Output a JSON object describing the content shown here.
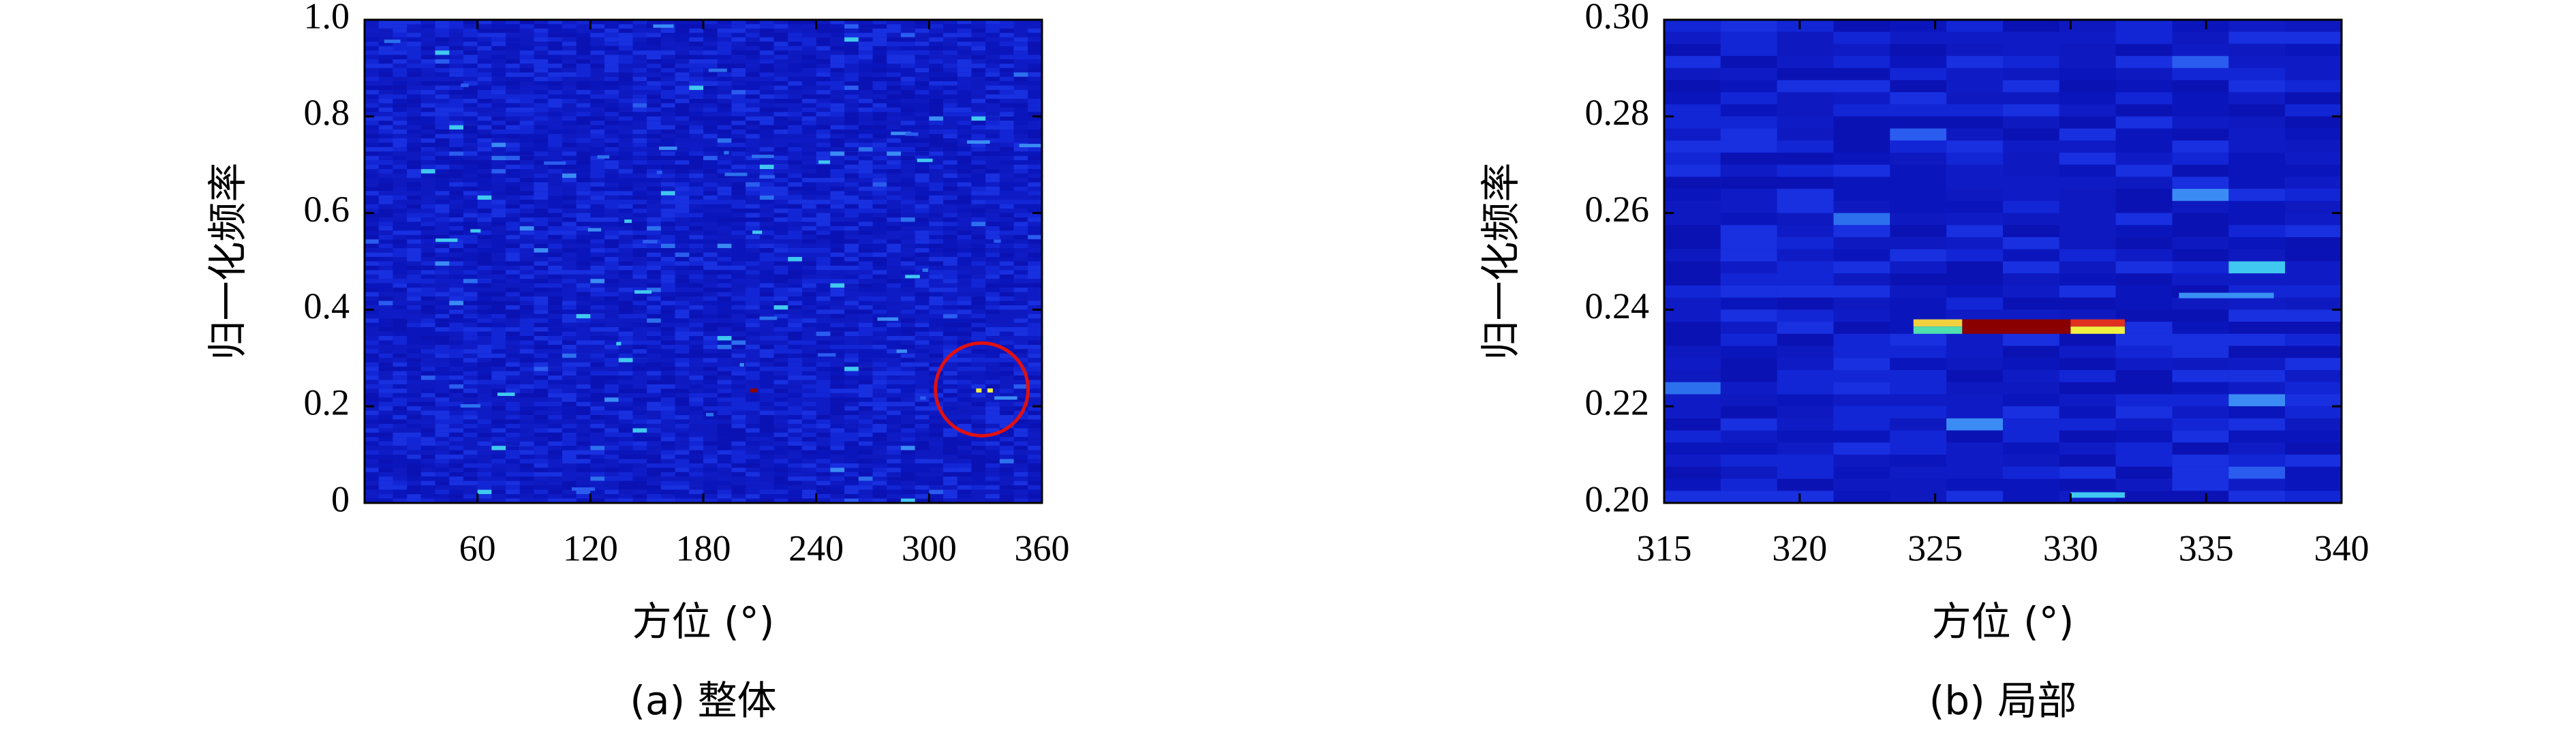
{
  "chart_data": [
    {
      "type": "heatmap",
      "caption": "(a) 整体",
      "xlabel": "方位 (°)",
      "ylabel": "归一化频率",
      "xlim": [
        0,
        360
      ],
      "ylim": [
        0,
        1
      ],
      "xticks": [
        60,
        120,
        180,
        240,
        300,
        360
      ],
      "yticks": [
        0,
        0.2,
        0.4,
        0.6,
        0.8,
        {
          "value": 1,
          "label": "1.0"
        }
      ]
    },
    {
      "type": "heatmap",
      "caption": "(b) 局部",
      "xlabel": "方位 (°)",
      "ylabel": "归一化频率",
      "xlim": [
        315,
        340
      ],
      "ylim": [
        0.2,
        0.3
      ],
      "xticks": [
        315,
        320,
        325,
        330,
        335,
        340
      ],
      "yticks": [
        {
          "value": 0.2,
          "label": "0.20"
        },
        0.22,
        0.24,
        0.26,
        0.28,
        {
          "value": 0.3,
          "label": "0.30"
        }
      ]
    }
  ]
}
